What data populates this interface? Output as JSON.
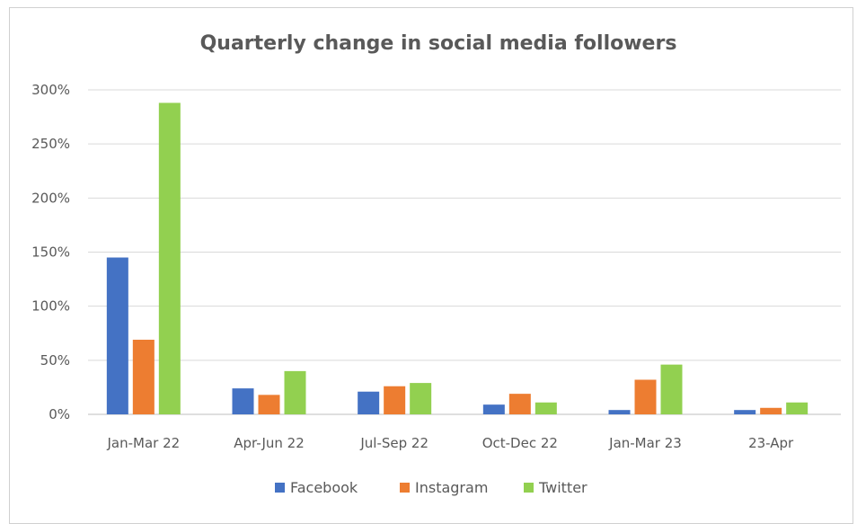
{
  "chart_data": {
    "type": "bar",
    "title": "Quarterly change in social media followers",
    "xlabel": "",
    "ylabel": "",
    "categories": [
      "Jan-Mar 22",
      "Apr-Jun 22",
      "Jul-Sep 22",
      "Oct-Dec 22",
      "Jan-Mar 23",
      "23-Apr"
    ],
    "series": [
      {
        "name": "Facebook",
        "color": "#4472c4",
        "values": [
          145,
          24,
          21,
          9,
          4,
          4
        ]
      },
      {
        "name": "Instagram",
        "color": "#ed7d31",
        "values": [
          69,
          18,
          26,
          19,
          32,
          6
        ]
      },
      {
        "name": "Twitter",
        "color": "#92d050",
        "values": [
          288,
          40,
          29,
          11,
          46,
          11
        ]
      }
    ],
    "yticks": [
      "0%",
      "50%",
      "100%",
      "150%",
      "200%",
      "250%",
      "300%"
    ],
    "ylim": [
      0,
      300
    ],
    "unit": "%",
    "grid": true,
    "legend_position": "bottom"
  }
}
